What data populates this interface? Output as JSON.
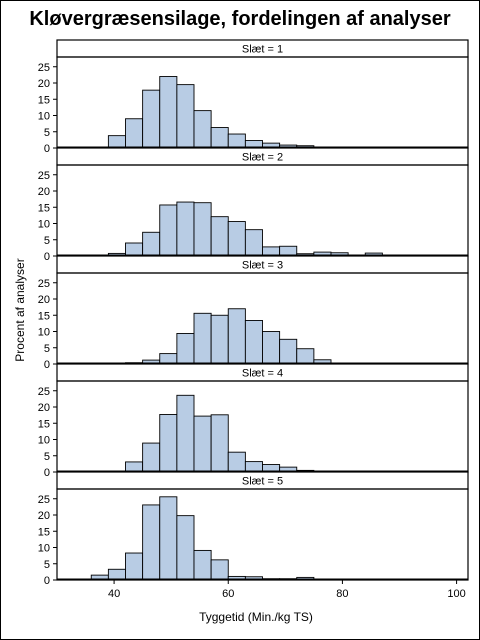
{
  "chart_data": {
    "type": "bar",
    "title": "Kløvergræsensilage, fordelingen af analyser",
    "xlabel": "Tyggetid (Min./kg TS)",
    "ylabel": "Procent af analyser",
    "xlim": [
      30,
      102
    ],
    "ylim": [
      0,
      28
    ],
    "xticks": [
      40,
      60,
      80,
      100
    ],
    "yticks": [
      0,
      5,
      10,
      15,
      20,
      25
    ],
    "bin_width": 3,
    "bin_start": 30,
    "bar_color": "#b8cce4",
    "panels": [
      {
        "label": "Slæt = 1",
        "values": [
          0.3,
          0.2,
          0.3,
          3.8,
          9.0,
          17.8,
          22.0,
          19.5,
          11.5,
          6.3,
          4.3,
          2.3,
          1.5,
          0.9,
          0.7,
          0.3,
          0.2,
          0.2,
          0.1,
          0.1,
          0,
          0,
          0,
          0
        ]
      },
      {
        "label": "Slæt = 2",
        "values": [
          0,
          0,
          0.1,
          0.8,
          4.0,
          7.3,
          15.7,
          16.6,
          16.4,
          12.1,
          10.6,
          8.1,
          2.8,
          3.0,
          0.7,
          1.2,
          1.0,
          0.2,
          0.9,
          0.1,
          0,
          0,
          0,
          0
        ]
      },
      {
        "label": "Slæt = 3",
        "values": [
          0,
          0,
          0,
          0.1,
          0.4,
          1.2,
          3.2,
          9.4,
          15.6,
          15.0,
          17.0,
          13.4,
          10.0,
          7.6,
          4.7,
          1.3,
          0.3,
          0.1,
          0.2,
          0.1,
          0,
          0,
          0,
          0
        ]
      },
      {
        "label": "Slæt = 4",
        "values": [
          0,
          0,
          0,
          0,
          3.1,
          8.9,
          17.7,
          23.6,
          17.2,
          17.6,
          6.1,
          3.2,
          2.3,
          1.5,
          0.5,
          0,
          0,
          0,
          0,
          0,
          0,
          0,
          0,
          0
        ]
      },
      {
        "label": "Slæt = 5",
        "values": [
          0,
          0,
          1.5,
          3.3,
          8.3,
          23.1,
          25.6,
          19.8,
          9.1,
          6.2,
          1.1,
          1.0,
          0.4,
          0.4,
          0.8,
          0,
          0,
          0,
          0,
          0,
          0,
          0,
          0,
          0
        ]
      }
    ]
  }
}
